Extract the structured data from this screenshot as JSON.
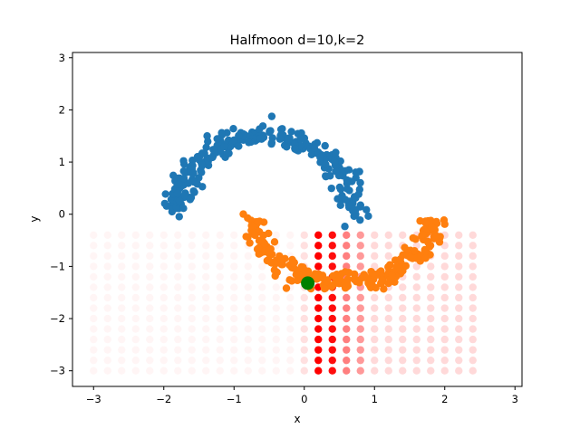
{
  "chart_data": {
    "type": "scatter",
    "title": "Halfmoon d=10,k=2",
    "xlabel": "x",
    "ylabel": "y",
    "xlim": [
      -3.3,
      3.1
    ],
    "ylim": [
      -3.3,
      3.1
    ],
    "xticks": [
      -3,
      -2,
      -1,
      0,
      1,
      2,
      3
    ],
    "yticks": [
      -3,
      -2,
      -1,
      0,
      1,
      2,
      3
    ],
    "grid": false,
    "legend": "none",
    "colors": {
      "moon_upper": "#1f77b4",
      "moon_lower": "#ff7f0e",
      "query_point": "#008000",
      "grid_points": "#ff0000"
    },
    "moons": {
      "upper": {
        "center_x": -0.55,
        "center_y": 0.0,
        "radius_x": 1.25,
        "radius_y": 1.5,
        "angle_start_deg": 0,
        "angle_end_deg": 180,
        "noise": 0.1,
        "n": 260
      },
      "lower": {
        "center_x": 0.55,
        "center_y": -0.1,
        "radius_x": 1.25,
        "radius_y": 1.2,
        "angle_start_deg": 180,
        "angle_end_deg": 360,
        "noise": 0.1,
        "n": 260
      }
    },
    "query_point": {
      "x": 0.05,
      "y": -1.32
    },
    "grid_points": {
      "x_start": -3.0,
      "x_step": 0.2,
      "x_count": 28,
      "y_start": -3.0,
      "y_step": 0.2,
      "y_count": 14,
      "alpha_by_column": [
        {
          "x_from": -3.0,
          "x_to": -0.2,
          "alpha": 0.04
        },
        {
          "x_from": -0.2,
          "x_to": 0.0,
          "alpha": 0.12
        },
        {
          "x_from": 0.0,
          "x_to": 0.1,
          "alpha": 0.15
        },
        {
          "x_from": 0.2,
          "x_to": 0.2,
          "alpha": 1.0
        },
        {
          "x_from": 0.4,
          "x_to": 0.4,
          "alpha": 0.95
        },
        {
          "x_from": 0.6,
          "x_to": 0.6,
          "alpha": 0.5
        },
        {
          "x_from": 0.8,
          "x_to": 0.8,
          "alpha": 0.4
        },
        {
          "x_from": 1.0,
          "x_to": 2.4,
          "alpha": 0.15
        },
        {
          "x_from": 2.6,
          "x_to": 3.0,
          "alpha": 0.04
        }
      ]
    }
  }
}
